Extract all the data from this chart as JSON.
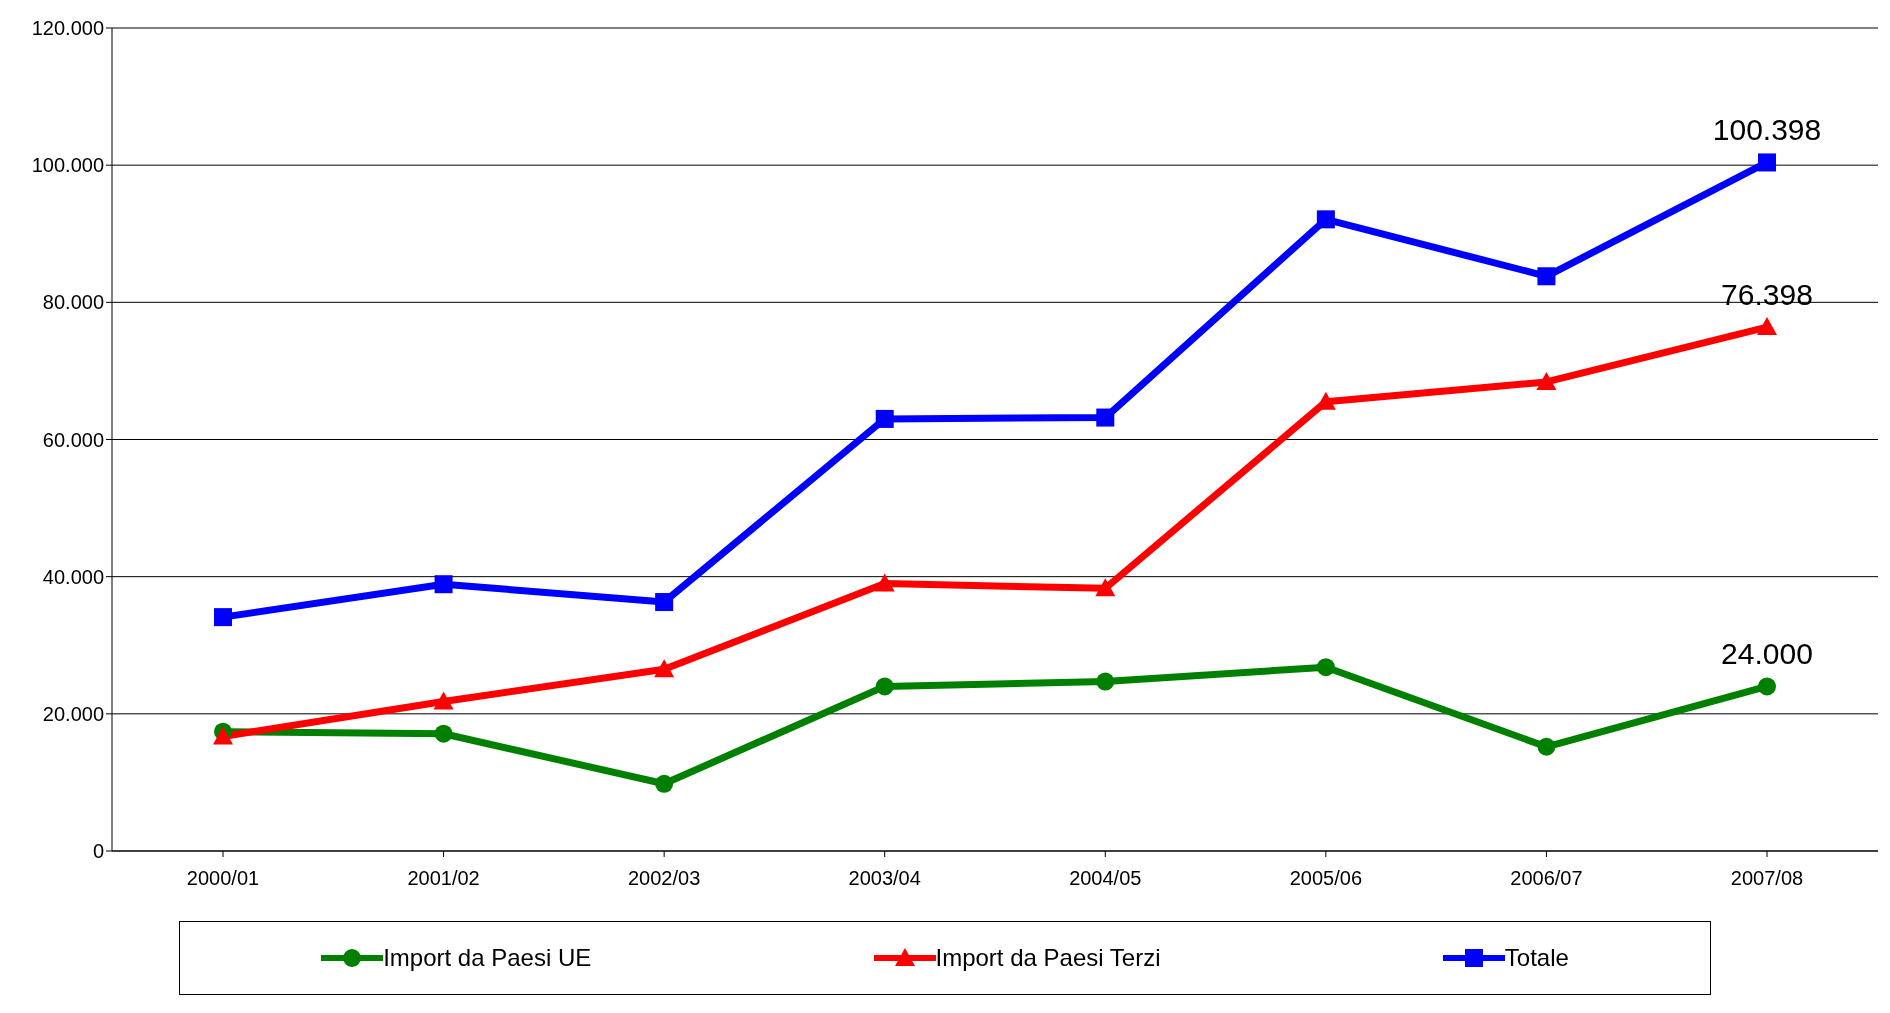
{
  "chart_data": {
    "type": "line",
    "categories": [
      "2000/01",
      "2001/02",
      "2002/03",
      "2003/04",
      "2004/05",
      "2005/06",
      "2006/07",
      "2007/08"
    ],
    "series": [
      {
        "name": "Import da Paesi UE",
        "color": "#008000",
        "marker": "circle",
        "values": [
          17400,
          17100,
          9800,
          24000,
          24700,
          26800,
          15200,
          24000
        ],
        "value_labels": [
          null,
          null,
          null,
          null,
          null,
          null,
          null,
          "24.000"
        ]
      },
      {
        "name": "Import da Paesi Terzi",
        "color": "#ff0000",
        "marker": "triangle",
        "values": [
          16700,
          21800,
          26500,
          39000,
          38300,
          65500,
          68400,
          76398
        ],
        "value_labels": [
          null,
          null,
          null,
          null,
          null,
          null,
          null,
          "76.398"
        ]
      },
      {
        "name": "Totale",
        "color": "#0000ff",
        "marker": "square",
        "values": [
          34100,
          38900,
          36300,
          63000,
          63200,
          92100,
          83800,
          100398
        ],
        "value_labels": [
          null,
          null,
          null,
          null,
          null,
          null,
          null,
          "100.398"
        ]
      }
    ],
    "ylim": [
      0,
      120000
    ],
    "yticks": [
      {
        "value": 0,
        "label": "0"
      },
      {
        "value": 20000,
        "label": "20.000"
      },
      {
        "value": 40000,
        "label": "40.000"
      },
      {
        "value": 60000,
        "label": "60.000"
      },
      {
        "value": 80000,
        "label": "80.000"
      },
      {
        "value": 100000,
        "label": "100.000"
      },
      {
        "value": 120000,
        "label": "120.000"
      }
    ],
    "grid": "y",
    "legend": "bottom"
  }
}
